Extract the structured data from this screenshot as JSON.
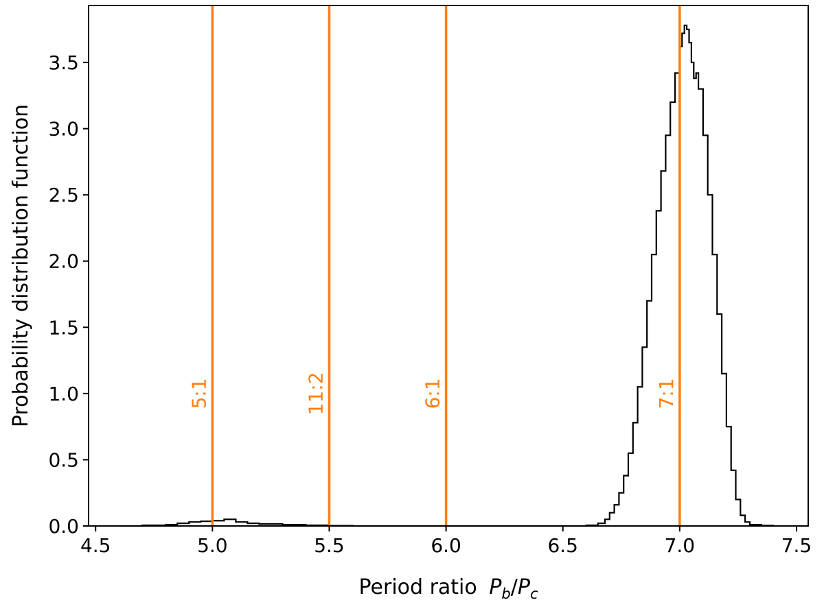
{
  "chart_data": {
    "type": "histogram",
    "xlabel": "Period ratio",
    "xlabel_math": {
      "base1": "P",
      "sub1": "b",
      "sep": "/",
      "base2": "P",
      "sub2": "c"
    },
    "ylabel": "Probability distribution function",
    "xlim": [
      4.47,
      7.55
    ],
    "ylim": [
      0.0,
      3.93
    ],
    "xticks": [
      4.5,
      5.0,
      5.5,
      6.0,
      6.5,
      7.0,
      7.5
    ],
    "xtick_labels": [
      "4.5",
      "5.0",
      "5.5",
      "6.0",
      "6.5",
      "7.0",
      "7.5"
    ],
    "yticks": [
      0.0,
      0.5,
      1.0,
      1.5,
      2.0,
      2.5,
      3.0,
      3.5
    ],
    "ytick_labels": [
      "0.0",
      "0.5",
      "1.0",
      "1.5",
      "2.0",
      "2.5",
      "3.0",
      "3.5"
    ],
    "grid": false,
    "series": [
      {
        "color": "#000000",
        "style": "step",
        "x": [
          4.6,
          4.7,
          4.8,
          4.85,
          4.9,
          4.95,
          5.0,
          5.05,
          5.1,
          5.15,
          5.2,
          5.3,
          5.4,
          5.5,
          5.6,
          6.5,
          6.6,
          6.65,
          6.68,
          6.7,
          6.72,
          6.74,
          6.76,
          6.78,
          6.8,
          6.82,
          6.84,
          6.86,
          6.88,
          6.9,
          6.92,
          6.94,
          6.96,
          6.98,
          7.0,
          7.01,
          7.02,
          7.03,
          7.04,
          7.05,
          7.06,
          7.07,
          7.08,
          7.1,
          7.12,
          7.14,
          7.16,
          7.18,
          7.2,
          7.22,
          7.24,
          7.26,
          7.28,
          7.3,
          7.35,
          7.4
        ],
        "y": [
          0.0,
          0.005,
          0.01,
          0.02,
          0.03,
          0.035,
          0.04,
          0.05,
          0.03,
          0.02,
          0.015,
          0.01,
          0.005,
          0.002,
          0.0,
          0.0,
          0.005,
          0.02,
          0.05,
          0.1,
          0.16,
          0.25,
          0.38,
          0.55,
          0.78,
          1.05,
          1.35,
          1.7,
          2.05,
          2.38,
          2.68,
          2.95,
          3.2,
          3.42,
          3.62,
          3.72,
          3.78,
          3.75,
          3.65,
          3.5,
          3.38,
          3.42,
          3.3,
          2.95,
          2.5,
          2.05,
          1.6,
          1.15,
          0.75,
          0.42,
          0.2,
          0.08,
          0.03,
          0.01,
          0.003,
          0.0
        ]
      }
    ],
    "resonances": [
      {
        "x": 5.0,
        "label": "5:1"
      },
      {
        "x": 5.5,
        "label": "11:2"
      },
      {
        "x": 6.0,
        "label": "6:1"
      },
      {
        "x": 7.0,
        "label": "7:1"
      }
    ],
    "resonance_label_y": 1.0,
    "resonance_color": "#ff7f0e"
  }
}
